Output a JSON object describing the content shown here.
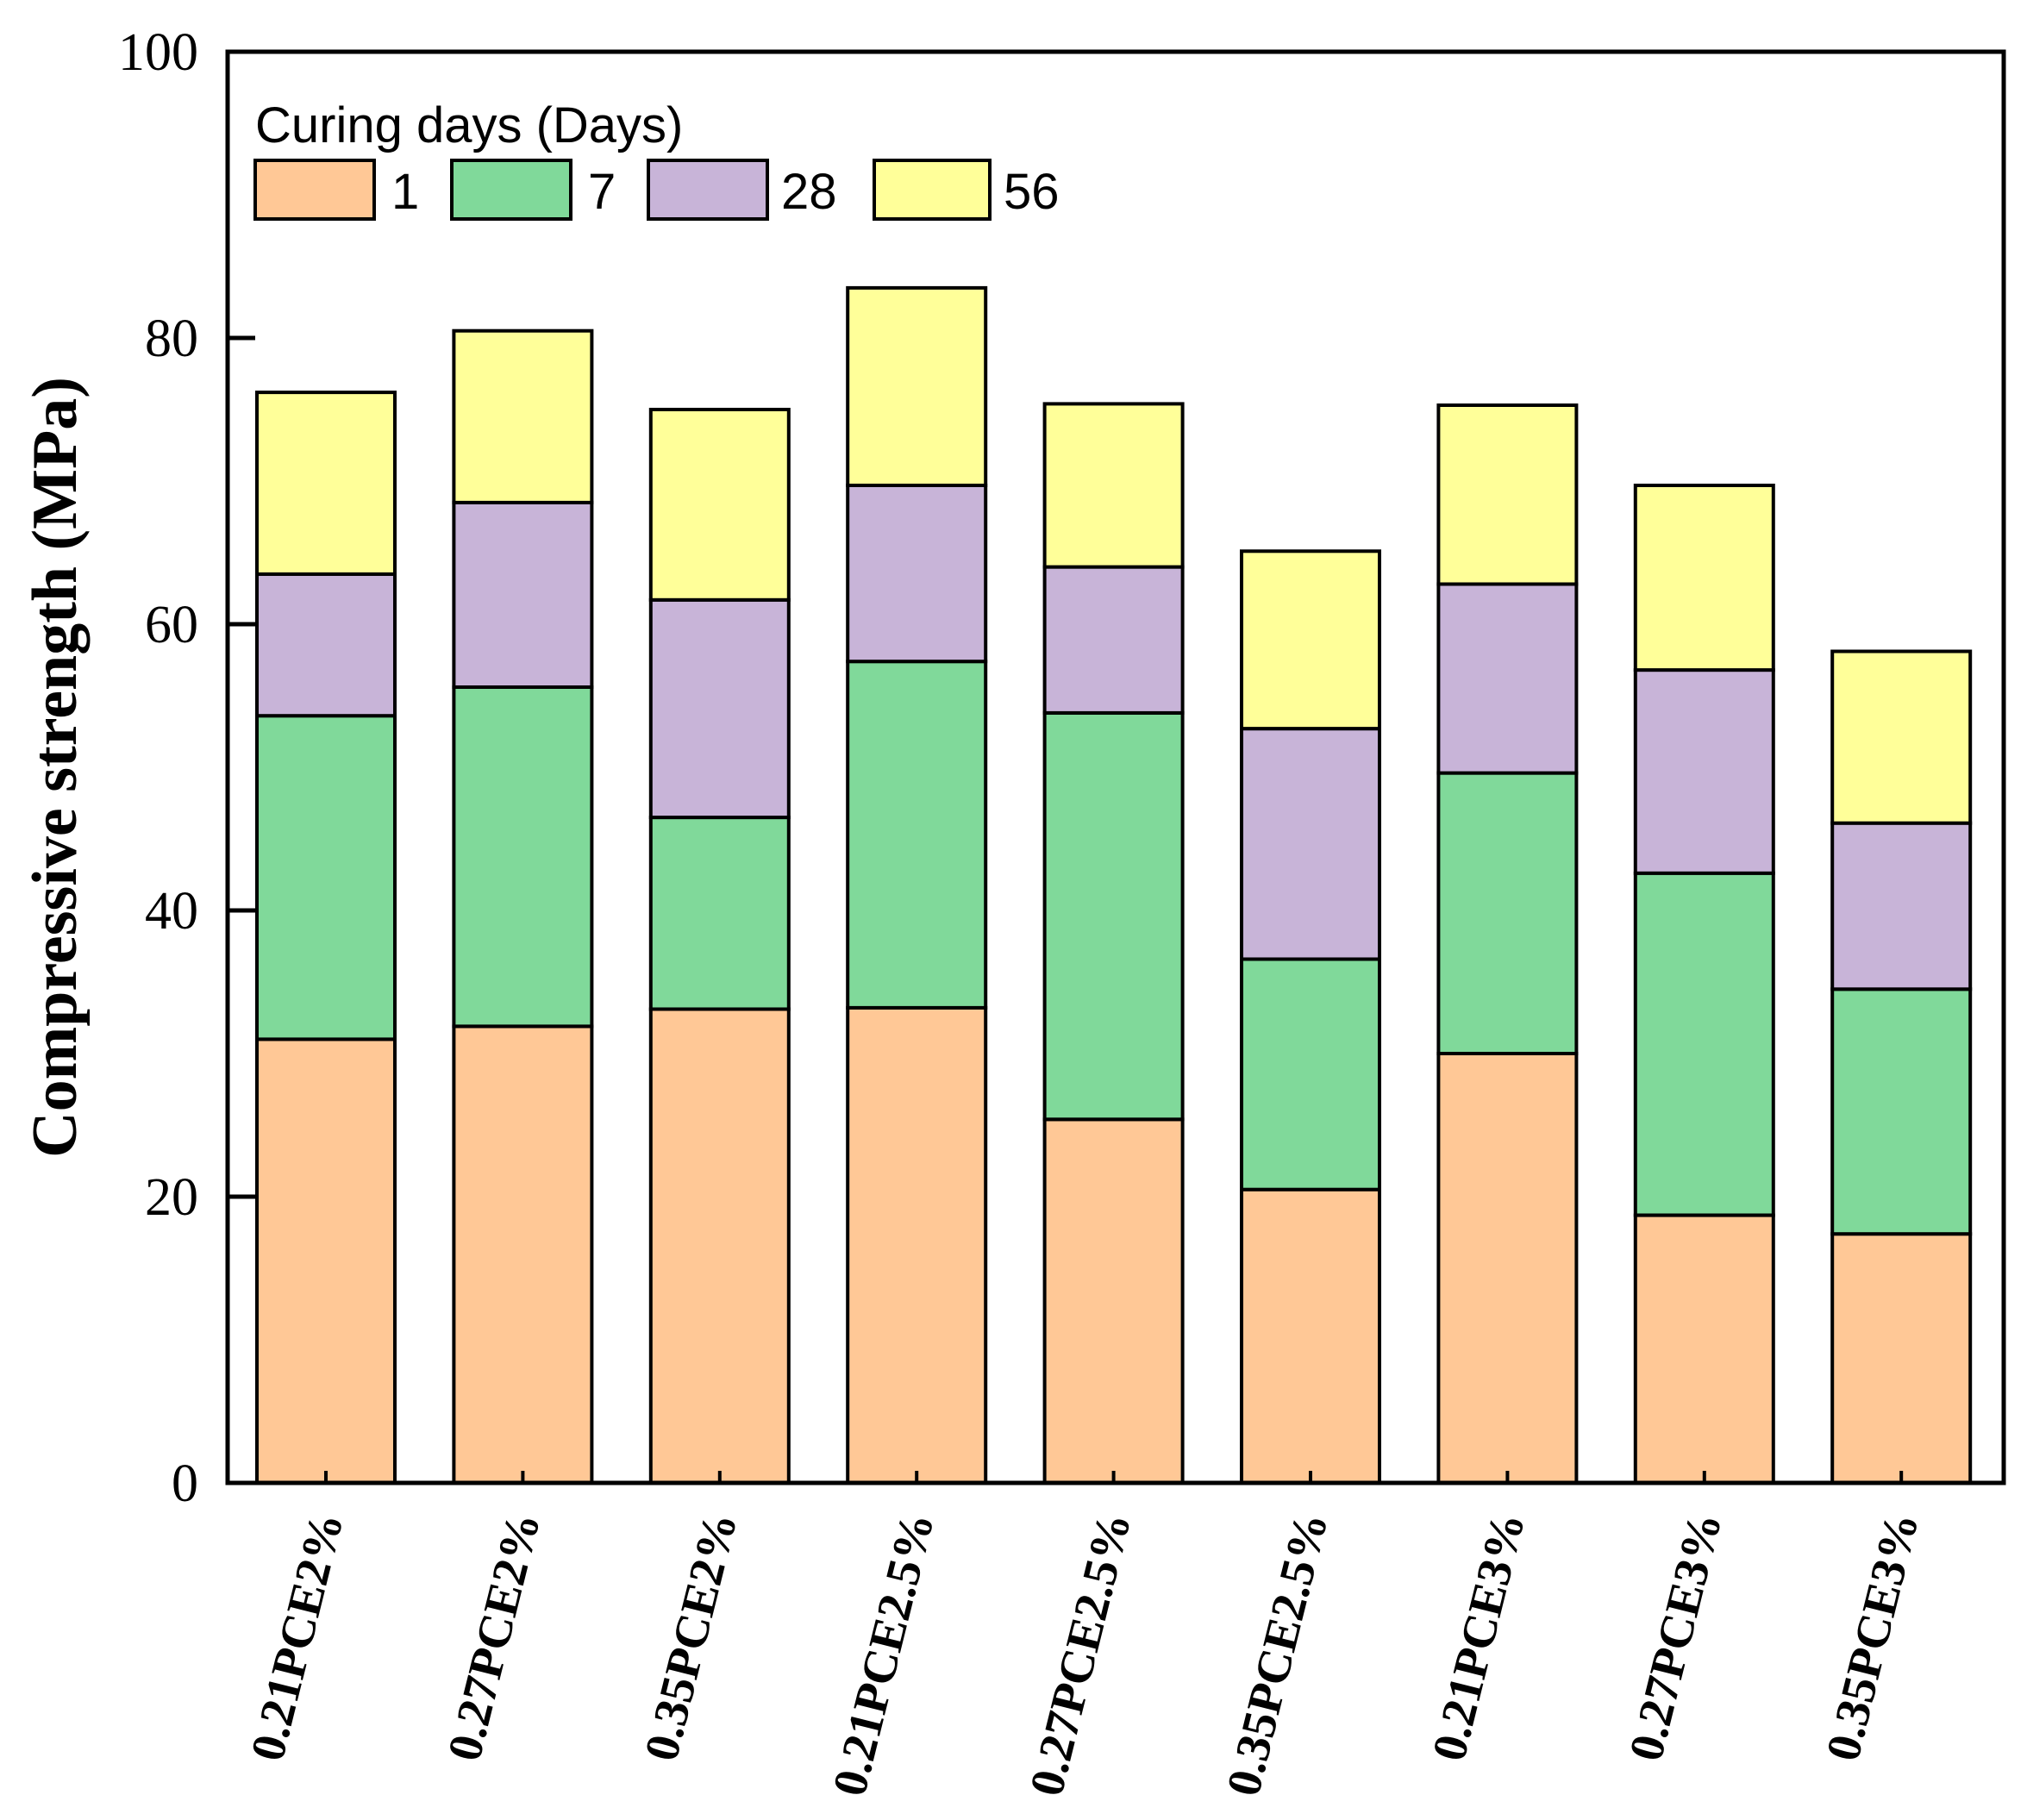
{
  "chart_data": {
    "type": "bar",
    "stacked": true,
    "title": "",
    "xlabel": "",
    "ylabel": "Compressive strength (MPa)",
    "ylim": [
      0,
      100
    ],
    "yticks": [
      0,
      20,
      40,
      60,
      80,
      100
    ],
    "grid": false,
    "legend": {
      "title": "Curing days (Days)",
      "position": "top-left"
    },
    "categories": [
      "0.21PCE2%",
      "0.27PCE2%",
      "0.35PCE2%",
      "0.21PCE2.5%",
      "0.27PCE2.5%",
      "0.35PCE2.5%",
      "0.21PCE3%",
      "0.27PCE3%",
      "0.35PCE3%"
    ],
    "series": [
      {
        "name": "1",
        "color": "#FFC896",
        "values": [
          31.0,
          31.9,
          33.1,
          33.2,
          25.4,
          20.5,
          30.0,
          18.7,
          17.4
        ]
      },
      {
        "name": "7",
        "color": "#80D99A",
        "values": [
          22.6,
          23.7,
          13.4,
          24.2,
          28.4,
          16.1,
          19.6,
          23.9,
          17.1
        ]
      },
      {
        "name": "28",
        "color": "#C8B4D8",
        "values": [
          9.9,
          12.9,
          15.2,
          12.3,
          10.2,
          16.1,
          13.2,
          14.2,
          11.6
        ]
      },
      {
        "name": "56",
        "color": "#FFFF99",
        "values": [
          12.7,
          12.0,
          13.3,
          13.8,
          11.4,
          12.4,
          12.5,
          12.9,
          12.0
        ]
      }
    ]
  }
}
